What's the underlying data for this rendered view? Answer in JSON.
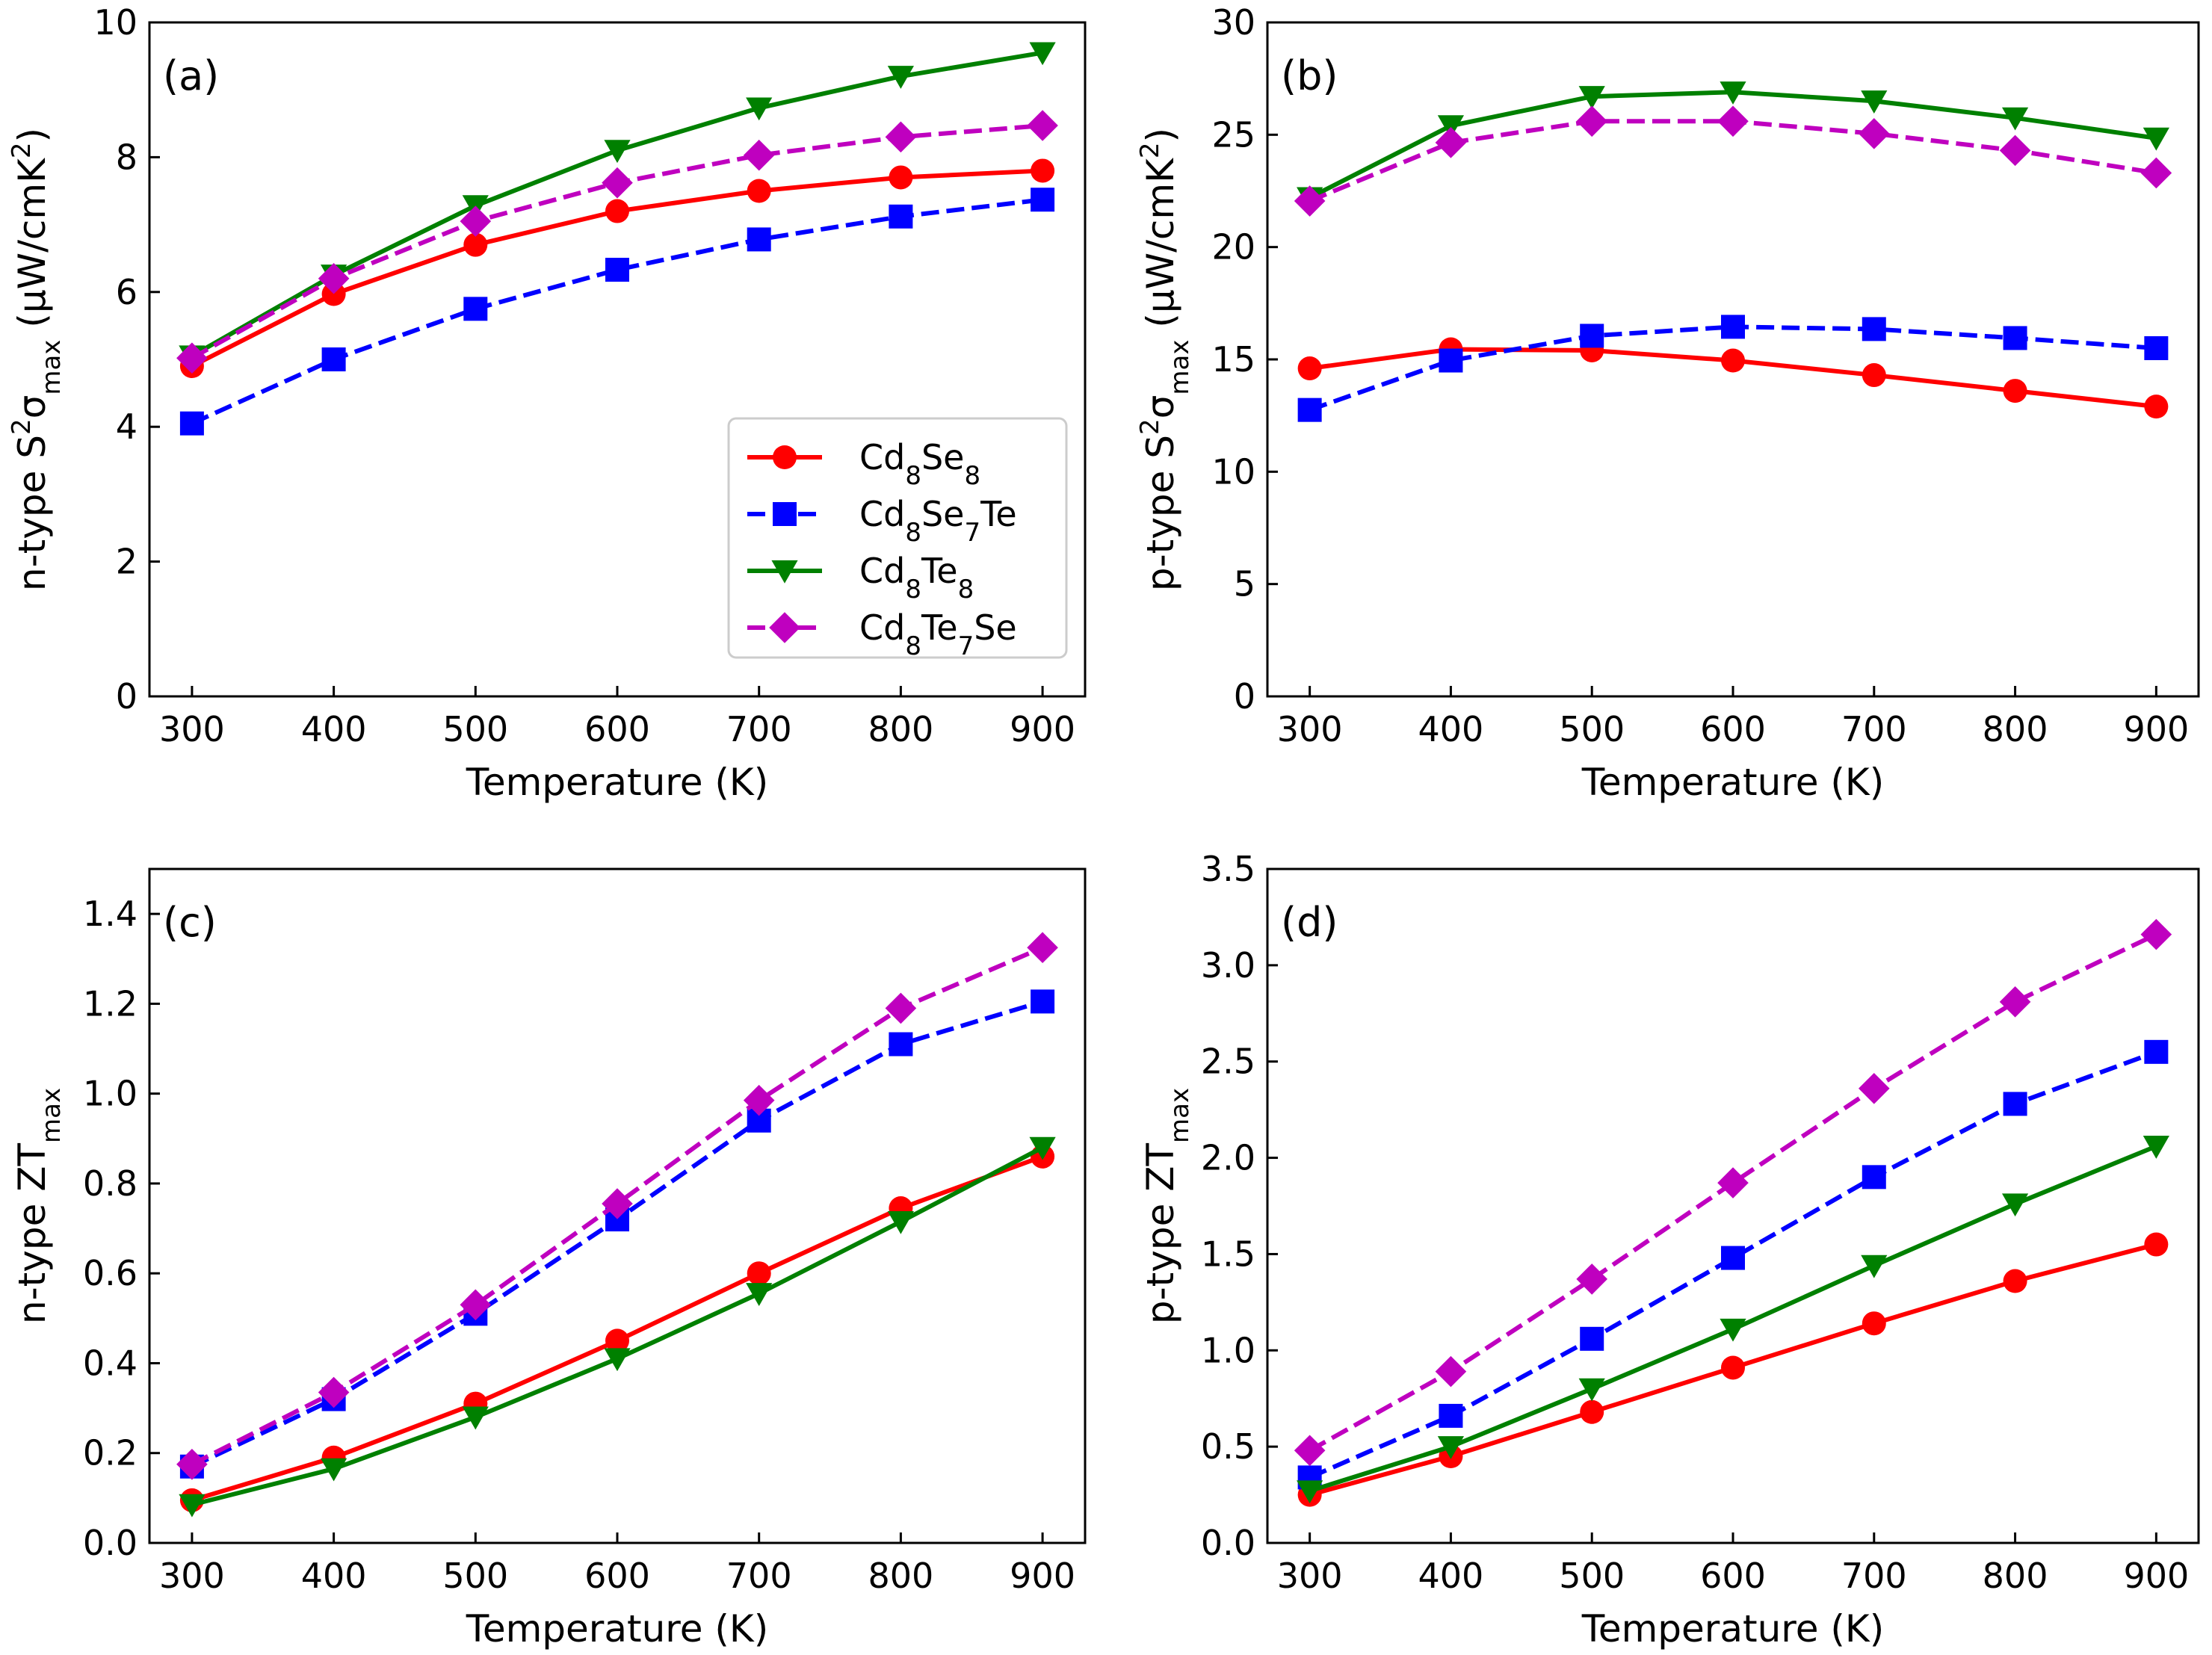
{
  "chart_data": [
    {
      "type": "line",
      "panel": "(a)",
      "xlabel": "Temperature (K)",
      "ylabel": {
        "main": "n-type S",
        "sup": "2",
        "sigma": "σ",
        "sub": "max",
        "unit_open": " (µW/cmK",
        "unit_sup": "2",
        "unit_close": ")"
      },
      "xlim": [
        270,
        930
      ],
      "ylim": [
        0,
        10
      ],
      "xticks": [
        300,
        400,
        500,
        600,
        700,
        800,
        900
      ],
      "yticks": [
        0,
        2,
        4,
        6,
        8,
        10
      ],
      "x": [
        300,
        400,
        500,
        600,
        700,
        800,
        900
      ],
      "series": [
        {
          "name": "Cd8Se8",
          "values": [
            4.9,
            5.97,
            6.7,
            7.2,
            7.5,
            7.7,
            7.8
          ]
        },
        {
          "name": "Cd8Se7Te",
          "values": [
            4.05,
            5.0,
            5.75,
            6.33,
            6.78,
            7.12,
            7.37
          ]
        },
        {
          "name": "Cd8Te8",
          "values": [
            5.05,
            6.25,
            7.28,
            8.1,
            8.73,
            9.2,
            9.55
          ]
        },
        {
          "name": "Cd8Te7Se",
          "values": [
            5.02,
            6.2,
            7.05,
            7.62,
            8.03,
            8.3,
            8.47
          ]
        }
      ]
    },
    {
      "type": "line",
      "panel": "(b)",
      "xlabel": "Temperature (K)",
      "ylabel": {
        "main": "p-type S",
        "sup": "2",
        "sigma": "σ",
        "sub": "max",
        "unit_open": " (µW/cmK",
        "unit_sup": "2",
        "unit_close": ")"
      },
      "xlim": [
        270,
        930
      ],
      "ylim": [
        0,
        30
      ],
      "xticks": [
        300,
        400,
        500,
        600,
        700,
        800,
        900
      ],
      "yticks": [
        0,
        5,
        10,
        15,
        20,
        25,
        30
      ],
      "x": [
        300,
        400,
        500,
        600,
        700,
        800,
        900
      ],
      "series": [
        {
          "name": "Cd8Se8",
          "values": [
            14.6,
            15.45,
            15.4,
            14.95,
            14.3,
            13.6,
            12.9
          ]
        },
        {
          "name": "Cd8Se7Te",
          "values": [
            12.75,
            14.95,
            16.05,
            16.45,
            16.35,
            15.95,
            15.5
          ]
        },
        {
          "name": "Cd8Te8",
          "values": [
            22.2,
            25.4,
            26.7,
            26.9,
            26.5,
            25.75,
            24.85
          ]
        },
        {
          "name": "Cd8Te7Se",
          "values": [
            22.05,
            24.65,
            25.6,
            25.6,
            25.05,
            24.3,
            23.3
          ]
        }
      ]
    },
    {
      "type": "line",
      "panel": "(c)",
      "xlabel": "Temperature (K)",
      "ylabel": {
        "main": "n-type ZT",
        "sub": "max"
      },
      "xlim": [
        270,
        930
      ],
      "ylim": [
        0,
        1.5
      ],
      "xticks": [
        300,
        400,
        500,
        600,
        700,
        800,
        900
      ],
      "yticks": [
        "0.0",
        "0.2",
        "0.4",
        "0.6",
        "0.8",
        "1.0",
        "1.2",
        "1.4"
      ],
      "x": [
        300,
        400,
        500,
        600,
        700,
        800,
        900
      ],
      "series": [
        {
          "name": "Cd8Se8",
          "values": [
            0.095,
            0.19,
            0.31,
            0.45,
            0.6,
            0.745,
            0.86
          ]
        },
        {
          "name": "Cd8Se7Te",
          "values": [
            0.17,
            0.32,
            0.51,
            0.72,
            0.94,
            1.11,
            1.205
          ]
        },
        {
          "name": "Cd8Te8",
          "values": [
            0.085,
            0.165,
            0.28,
            0.41,
            0.555,
            0.715,
            0.88
          ]
        },
        {
          "name": "Cd8Te7Se",
          "values": [
            0.175,
            0.335,
            0.53,
            0.755,
            0.985,
            1.19,
            1.325
          ]
        }
      ]
    },
    {
      "type": "line",
      "panel": "(d)",
      "xlabel": "Temperature (K)",
      "ylabel": {
        "main": "p-type ZT",
        "sub": "max"
      },
      "xlim": [
        270,
        930
      ],
      "ylim": [
        0,
        3.5
      ],
      "xticks": [
        300,
        400,
        500,
        600,
        700,
        800,
        900
      ],
      "yticks": [
        "0.0",
        "0.5",
        "1.0",
        "1.5",
        "2.0",
        "2.5",
        "3.0",
        "3.5"
      ],
      "x": [
        300,
        400,
        500,
        600,
        700,
        800,
        900
      ],
      "series": [
        {
          "name": "Cd8Se8",
          "values": [
            0.25,
            0.45,
            0.68,
            0.91,
            1.14,
            1.36,
            1.55
          ]
        },
        {
          "name": "Cd8Se7Te",
          "values": [
            0.34,
            0.66,
            1.06,
            1.48,
            1.9,
            2.28,
            2.55
          ]
        },
        {
          "name": "Cd8Te8",
          "values": [
            0.27,
            0.5,
            0.8,
            1.11,
            1.44,
            1.76,
            2.06
          ]
        },
        {
          "name": "Cd8Te7Se",
          "values": [
            0.48,
            0.89,
            1.37,
            1.87,
            2.36,
            2.81,
            3.16
          ]
        }
      ]
    }
  ],
  "legend": {
    "placement": "lower-right of panel (a)",
    "entries": [
      {
        "key": "Cd8Se8",
        "parts": [
          [
            "Cd",
            ""
          ],
          [
            "8",
            "sub"
          ],
          [
            "Se",
            ""
          ],
          [
            "8",
            "sub"
          ]
        ]
      },
      {
        "key": "Cd8Se7Te",
        "parts": [
          [
            "Cd",
            ""
          ],
          [
            "8",
            "sub"
          ],
          [
            "Se",
            ""
          ],
          [
            "7",
            "sub"
          ],
          [
            "Te",
            ""
          ]
        ]
      },
      {
        "key": "Cd8Te8",
        "parts": [
          [
            "Cd",
            ""
          ],
          [
            "8",
            "sub"
          ],
          [
            "Te",
            ""
          ],
          [
            "8",
            "sub"
          ]
        ]
      },
      {
        "key": "Cd8Te7Se",
        "parts": [
          [
            "Cd",
            ""
          ],
          [
            "8",
            "sub"
          ],
          [
            "Te",
            ""
          ],
          [
            "7",
            "sub"
          ],
          [
            "Se",
            ""
          ]
        ]
      }
    ]
  },
  "styles": {
    "Cd8Se8": {
      "color": "#ff0000",
      "dash": "solid",
      "marker": "circle"
    },
    "Cd8Se7Te": {
      "color": "#0000ff",
      "dash": "dashed",
      "marker": "square"
    },
    "Cd8Te8": {
      "color": "#008000",
      "dash": "solid",
      "marker": "triangle-down"
    },
    "Cd8Te7Se": {
      "color": "#bf00bf",
      "dash": "dashed",
      "marker": "diamond"
    }
  }
}
